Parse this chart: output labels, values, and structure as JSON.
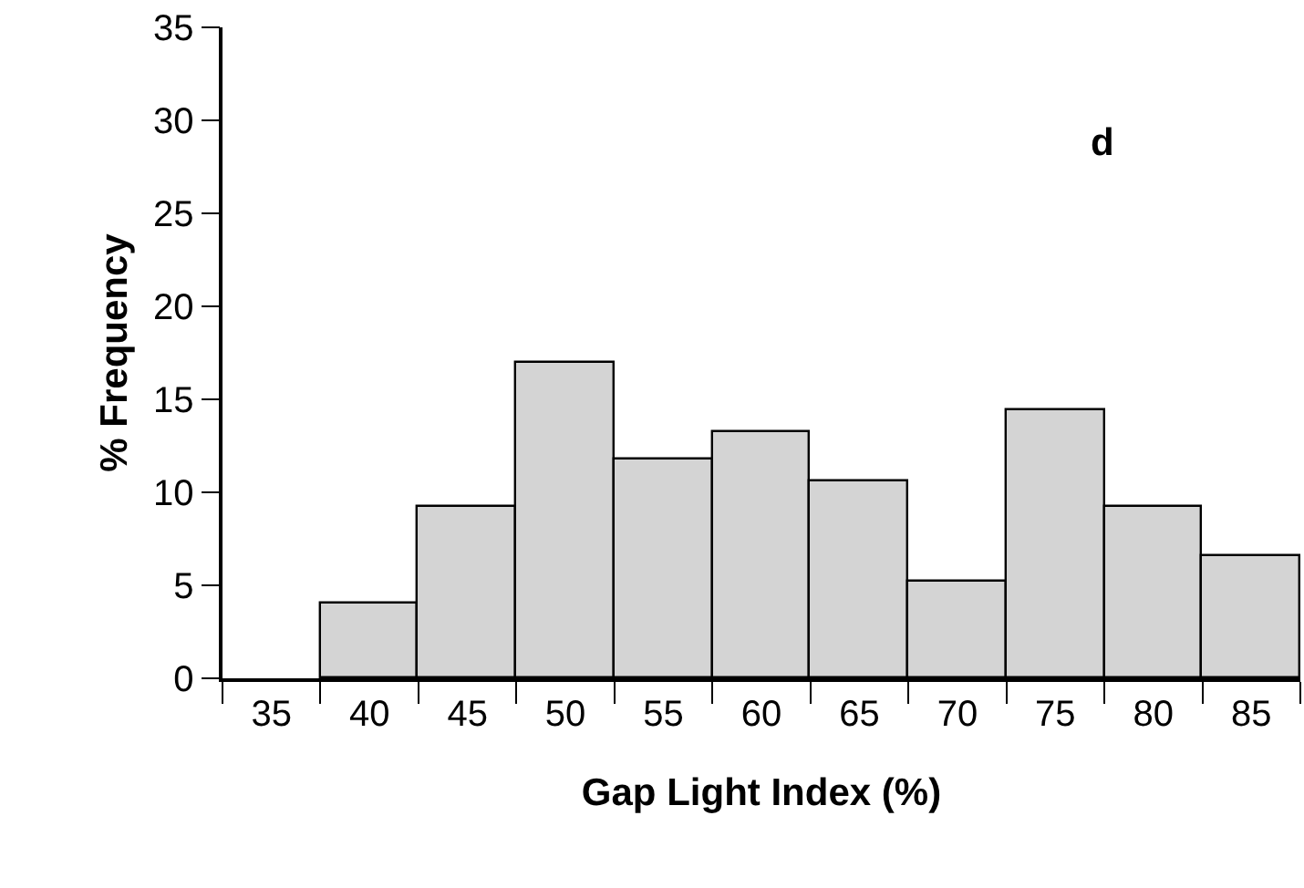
{
  "chart_data": {
    "type": "histogram",
    "xlabel": "Gap Light Index (%)",
    "ylabel": "% Frequency",
    "bins": [
      37.5,
      42.5,
      47.5,
      52.5,
      57.5,
      62.5,
      67.5,
      72.5,
      77.5,
      82.5,
      87.5
    ],
    "values": [
      4.0,
      9.2,
      17.0,
      11.8,
      13.2,
      10.6,
      5.2,
      14.4,
      9.2,
      6.6
    ],
    "color": "#d4d4d4",
    "xlim": [
      32.5,
      87.5
    ],
    "xticks": [
      35,
      40,
      45,
      50,
      55,
      60,
      65,
      70,
      75,
      80,
      85
    ],
    "ylim": [
      0,
      35
    ],
    "yticks": [
      0,
      5,
      10,
      15,
      20,
      25,
      30,
      35
    ],
    "annotations": [
      "d"
    ]
  }
}
